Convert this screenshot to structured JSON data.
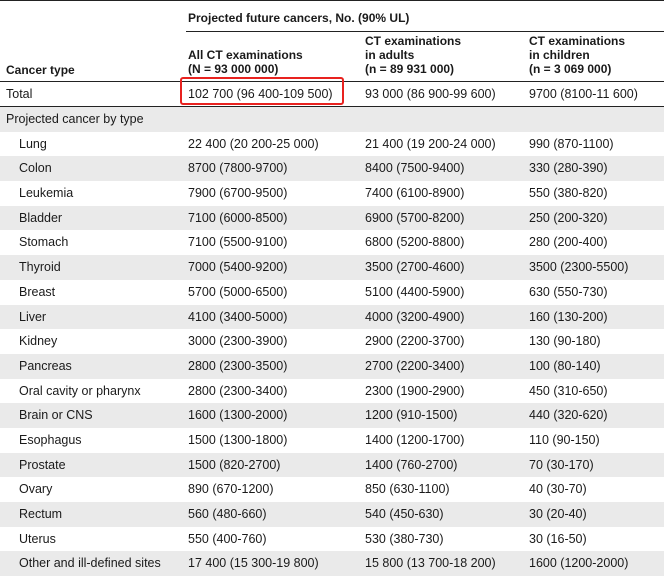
{
  "header": {
    "spanner": "Projected future cancers, No. (90% UL)",
    "col0": "Cancer type",
    "col1_line1": "All CT examinations",
    "col1_line2": "(N = 93 000 000)",
    "col2_line1": "CT examinations",
    "col2_line2": "in adults",
    "col2_line3": "(n = 89 931 000)",
    "col3_line1": "CT examinations",
    "col3_line2": "in children",
    "col3_line3": "(n = 3 069 000)"
  },
  "total": {
    "label": "Total",
    "all": "102 700 (96 400-109 500)",
    "adults": "93 000 (86 900-99 600)",
    "children": "9700 (8100-11 600)"
  },
  "section_label": "Projected cancer by type",
  "rows": [
    {
      "label": "Lung",
      "all": "22 400 (20 200-25 000)",
      "adults": "21 400 (19 200-24 000)",
      "children": "990 (870-1100)"
    },
    {
      "label": "Colon",
      "all": "8700 (7800-9700)",
      "adults": "8400 (7500-9400)",
      "children": "330 (280-390)"
    },
    {
      "label": "Leukemia",
      "all": "7900 (6700-9500)",
      "adults": "7400 (6100-8900)",
      "children": "550 (380-820)"
    },
    {
      "label": "Bladder",
      "all": "7100 (6000-8500)",
      "adults": "6900 (5700-8200)",
      "children": "250 (200-320)"
    },
    {
      "label": "Stomach",
      "all": "7100 (5500-9100)",
      "adults": "6800 (5200-8800)",
      "children": "280 (200-400)"
    },
    {
      "label": "Thyroid",
      "all": "7000 (5400-9200)",
      "adults": "3500 (2700-4600)",
      "children": "3500 (2300-5500)"
    },
    {
      "label": "Breast",
      "all": "5700 (5000-6500)",
      "adults": "5100 (4400-5900)",
      "children": "630 (550-730)"
    },
    {
      "label": "Liver",
      "all": "4100 (3400-5000)",
      "adults": "4000 (3200-4900)",
      "children": "160 (130-200)"
    },
    {
      "label": "Kidney",
      "all": "3000 (2300-3900)",
      "adults": "2900 (2200-3700)",
      "children": "130 (90-180)"
    },
    {
      "label": "Pancreas",
      "all": "2800 (2300-3500)",
      "adults": "2700 (2200-3400)",
      "children": "100 (80-140)"
    },
    {
      "label": "Oral cavity or pharynx",
      "all": "2800 (2300-3400)",
      "adults": "2300 (1900-2900)",
      "children": "450 (310-650)"
    },
    {
      "label": "Brain or CNS",
      "all": "1600 (1300-2000)",
      "adults": "1200 (910-1500)",
      "children": "440 (320-620)"
    },
    {
      "label": "Esophagus",
      "all": "1500 (1300-1800)",
      "adults": "1400 (1200-1700)",
      "children": "110 (90-150)"
    },
    {
      "label": "Prostate",
      "all": "1500 (820-2700)",
      "adults": "1400 (760-2700)",
      "children": "70 (30-170)"
    },
    {
      "label": "Ovary",
      "all": "890 (670-1200)",
      "adults": "850 (630-1100)",
      "children": "40 (30-70)"
    },
    {
      "label": "Rectum",
      "all": "560 (480-660)",
      "adults": "540 (450-630)",
      "children": "30 (20-40)"
    },
    {
      "label": "Uterus",
      "all": "550 (400-760)",
      "adults": "530 (380-730)",
      "children": "30 (16-50)"
    },
    {
      "label": "Other and ill-defined sites",
      "all": "17 400 (15 300-19 800)",
      "adults": "15 800 (13 700-18 200)",
      "children": "1600 (1200-2000)"
    }
  ],
  "highlight_color": "#e8221f"
}
